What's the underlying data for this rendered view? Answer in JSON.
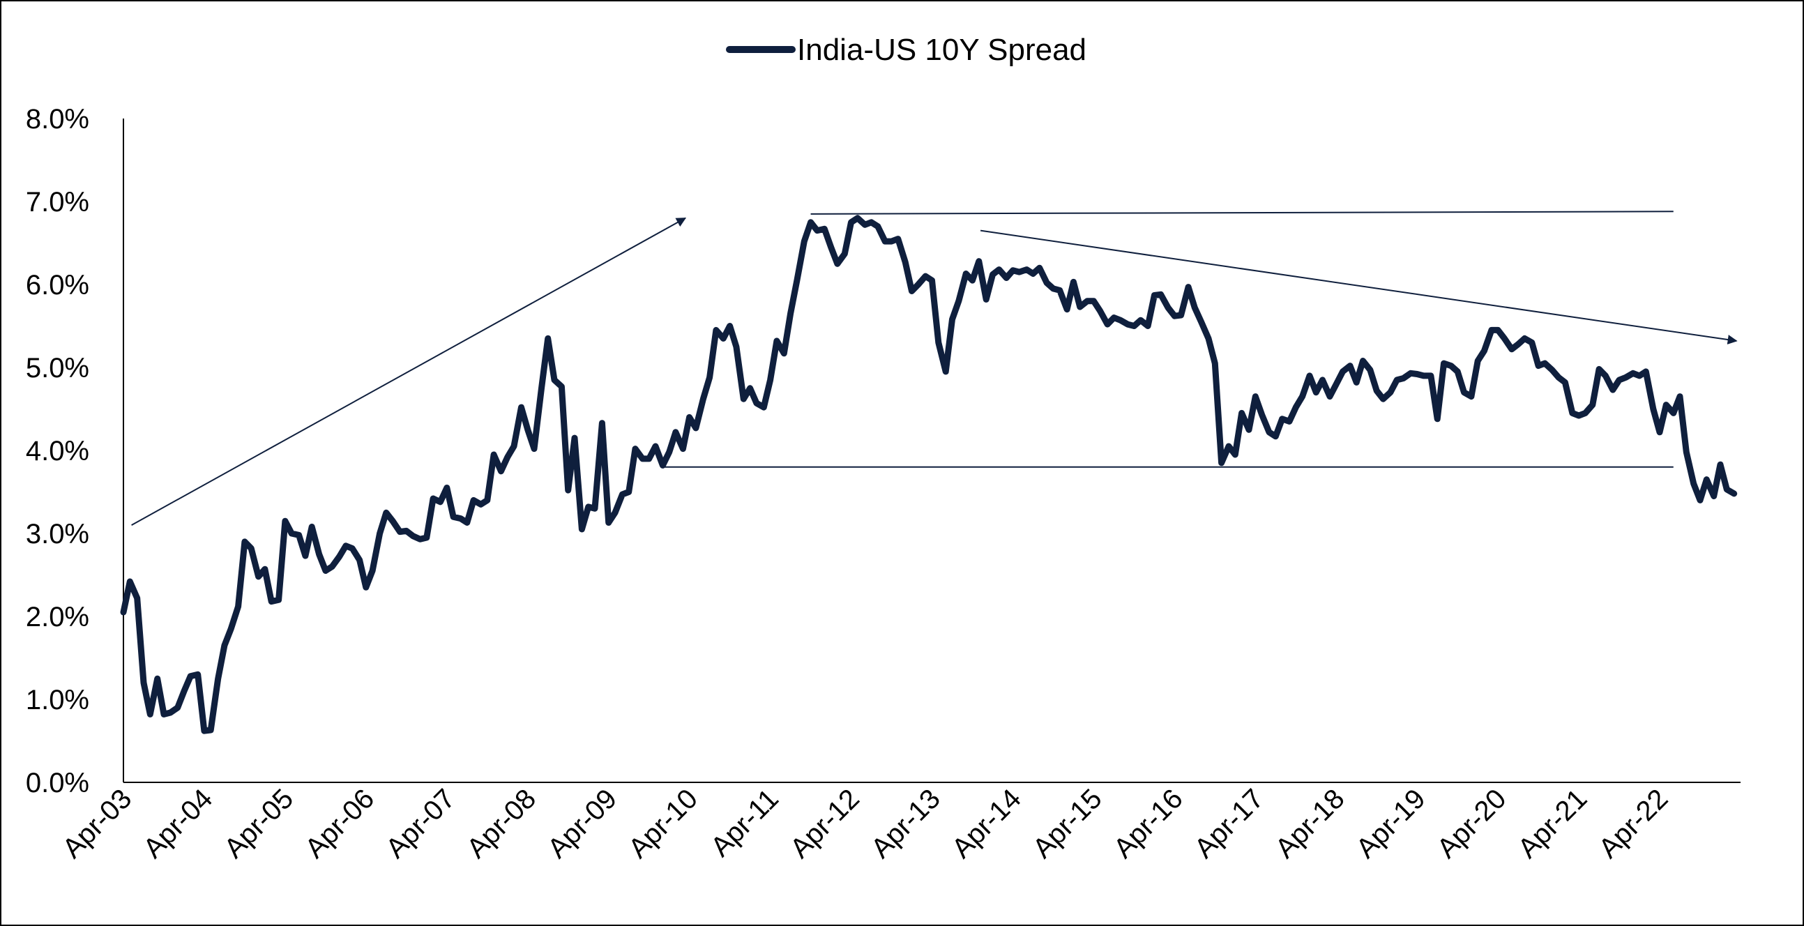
{
  "chart_data": {
    "type": "line",
    "legend": {
      "placement": "top-center",
      "label": "India-US 10Y Spread"
    },
    "y_axis": {
      "min": 0,
      "max": 8,
      "ticks": [
        "0.0%",
        "1.0%",
        "2.0%",
        "3.0%",
        "4.0%",
        "5.0%",
        "6.0%",
        "7.0%",
        "8.0%"
      ]
    },
    "x_axis": {
      "ticks": [
        "Apr-03",
        "Apr-04",
        "Apr-05",
        "Apr-06",
        "Apr-07",
        "Apr-08",
        "Apr-09",
        "Apr-10",
        "Apr-11",
        "Apr-12",
        "Apr-13",
        "Apr-14",
        "Apr-15",
        "Apr-16",
        "Apr-17",
        "Apr-18",
        "Apr-19",
        "Apr-20",
        "Apr-21",
        "Apr-22"
      ],
      "start": 2003.25,
      "end": 2023.25
    },
    "grid": false,
    "colors": {
      "series": "#0f1f3d",
      "annotation": "#0f1f3d"
    },
    "series": [
      {
        "name": "India-US 10Y Spread",
        "points": [
          [
            2003.25,
            2.05
          ],
          [
            2003.33,
            2.42
          ],
          [
            2003.42,
            2.22
          ],
          [
            2003.5,
            1.2
          ],
          [
            2003.58,
            0.82
          ],
          [
            2003.67,
            1.25
          ],
          [
            2003.75,
            0.82
          ],
          [
            2003.83,
            0.84
          ],
          [
            2003.92,
            0.9
          ],
          [
            2004.0,
            1.1
          ],
          [
            2004.08,
            1.28
          ],
          [
            2004.17,
            1.3
          ],
          [
            2004.25,
            0.62
          ],
          [
            2004.33,
            0.63
          ],
          [
            2004.42,
            1.25
          ],
          [
            2004.5,
            1.65
          ],
          [
            2004.58,
            1.85
          ],
          [
            2004.67,
            2.12
          ],
          [
            2004.75,
            2.9
          ],
          [
            2004.83,
            2.82
          ],
          [
            2004.92,
            2.48
          ],
          [
            2005.0,
            2.57
          ],
          [
            2005.08,
            2.18
          ],
          [
            2005.17,
            2.2
          ],
          [
            2005.25,
            3.15
          ],
          [
            2005.33,
            3.0
          ],
          [
            2005.42,
            2.98
          ],
          [
            2005.5,
            2.73
          ],
          [
            2005.58,
            3.08
          ],
          [
            2005.67,
            2.75
          ],
          [
            2005.75,
            2.55
          ],
          [
            2005.83,
            2.6
          ],
          [
            2005.92,
            2.72
          ],
          [
            2006.0,
            2.85
          ],
          [
            2006.08,
            2.82
          ],
          [
            2006.17,
            2.68
          ],
          [
            2006.25,
            2.35
          ],
          [
            2006.33,
            2.55
          ],
          [
            2006.42,
            3.0
          ],
          [
            2006.5,
            3.25
          ],
          [
            2006.58,
            3.15
          ],
          [
            2006.67,
            3.02
          ],
          [
            2006.75,
            3.03
          ],
          [
            2006.83,
            2.97
          ],
          [
            2006.92,
            2.93
          ],
          [
            2007.0,
            2.95
          ],
          [
            2007.08,
            3.42
          ],
          [
            2007.17,
            3.38
          ],
          [
            2007.25,
            3.55
          ],
          [
            2007.33,
            3.2
          ],
          [
            2007.42,
            3.18
          ],
          [
            2007.5,
            3.13
          ],
          [
            2007.58,
            3.4
          ],
          [
            2007.67,
            3.35
          ],
          [
            2007.75,
            3.4
          ],
          [
            2007.83,
            3.95
          ],
          [
            2007.92,
            3.75
          ],
          [
            2008.0,
            3.92
          ],
          [
            2008.08,
            4.05
          ],
          [
            2008.17,
            4.52
          ],
          [
            2008.25,
            4.25
          ],
          [
            2008.33,
            4.02
          ],
          [
            2008.42,
            4.75
          ],
          [
            2008.5,
            5.35
          ],
          [
            2008.58,
            4.85
          ],
          [
            2008.67,
            4.77
          ],
          [
            2008.75,
            3.52
          ],
          [
            2008.83,
            4.15
          ],
          [
            2008.92,
            3.05
          ],
          [
            2009.0,
            3.32
          ],
          [
            2009.08,
            3.3
          ],
          [
            2009.17,
            4.33
          ],
          [
            2009.25,
            3.13
          ],
          [
            2009.33,
            3.25
          ],
          [
            2009.42,
            3.47
          ],
          [
            2009.5,
            3.5
          ],
          [
            2009.58,
            4.02
          ],
          [
            2009.67,
            3.9
          ],
          [
            2009.75,
            3.9
          ],
          [
            2009.83,
            4.05
          ],
          [
            2009.92,
            3.82
          ],
          [
            2010.0,
            3.98
          ],
          [
            2010.08,
            4.22
          ],
          [
            2010.17,
            4.02
          ],
          [
            2010.25,
            4.4
          ],
          [
            2010.33,
            4.27
          ],
          [
            2010.42,
            4.62
          ],
          [
            2010.5,
            4.88
          ],
          [
            2010.58,
            5.45
          ],
          [
            2010.67,
            5.35
          ],
          [
            2010.75,
            5.5
          ],
          [
            2010.83,
            5.25
          ],
          [
            2010.92,
            4.62
          ],
          [
            2011.0,
            4.75
          ],
          [
            2011.08,
            4.57
          ],
          [
            2011.17,
            4.52
          ],
          [
            2011.25,
            4.85
          ],
          [
            2011.33,
            5.32
          ],
          [
            2011.42,
            5.17
          ],
          [
            2011.5,
            5.65
          ],
          [
            2011.58,
            6.05
          ],
          [
            2011.67,
            6.52
          ],
          [
            2011.75,
            6.75
          ],
          [
            2011.83,
            6.65
          ],
          [
            2011.92,
            6.67
          ],
          [
            2012.0,
            6.45
          ],
          [
            2012.08,
            6.25
          ],
          [
            2012.17,
            6.37
          ],
          [
            2012.25,
            6.75
          ],
          [
            2012.33,
            6.8
          ],
          [
            2012.42,
            6.72
          ],
          [
            2012.5,
            6.75
          ],
          [
            2012.58,
            6.7
          ],
          [
            2012.67,
            6.52
          ],
          [
            2012.75,
            6.52
          ],
          [
            2012.83,
            6.55
          ],
          [
            2012.92,
            6.27
          ],
          [
            2013.0,
            5.92
          ],
          [
            2013.08,
            6.0
          ],
          [
            2013.17,
            6.1
          ],
          [
            2013.25,
            6.05
          ],
          [
            2013.33,
            5.3
          ],
          [
            2013.42,
            4.95
          ],
          [
            2013.5,
            5.58
          ],
          [
            2013.58,
            5.8
          ],
          [
            2013.67,
            6.13
          ],
          [
            2013.75,
            6.05
          ],
          [
            2013.83,
            6.28
          ],
          [
            2013.92,
            5.82
          ],
          [
            2014.0,
            6.12
          ],
          [
            2014.08,
            6.18
          ],
          [
            2014.17,
            6.08
          ],
          [
            2014.25,
            6.17
          ],
          [
            2014.33,
            6.15
          ],
          [
            2014.42,
            6.18
          ],
          [
            2014.5,
            6.13
          ],
          [
            2014.58,
            6.2
          ],
          [
            2014.67,
            6.02
          ],
          [
            2014.75,
            5.95
          ],
          [
            2014.83,
            5.93
          ],
          [
            2014.92,
            5.7
          ],
          [
            2015.0,
            6.03
          ],
          [
            2015.08,
            5.73
          ],
          [
            2015.17,
            5.8
          ],
          [
            2015.25,
            5.8
          ],
          [
            2015.33,
            5.68
          ],
          [
            2015.42,
            5.52
          ],
          [
            2015.5,
            5.6
          ],
          [
            2015.58,
            5.57
          ],
          [
            2015.67,
            5.52
          ],
          [
            2015.75,
            5.5
          ],
          [
            2015.83,
            5.57
          ],
          [
            2015.92,
            5.5
          ],
          [
            2016.0,
            5.87
          ],
          [
            2016.08,
            5.88
          ],
          [
            2016.17,
            5.72
          ],
          [
            2016.25,
            5.62
          ],
          [
            2016.33,
            5.63
          ],
          [
            2016.42,
            5.97
          ],
          [
            2016.5,
            5.72
          ],
          [
            2016.58,
            5.55
          ],
          [
            2016.67,
            5.35
          ],
          [
            2016.75,
            5.05
          ],
          [
            2016.83,
            3.85
          ],
          [
            2016.92,
            4.05
          ],
          [
            2017.0,
            3.95
          ],
          [
            2017.08,
            4.45
          ],
          [
            2017.17,
            4.25
          ],
          [
            2017.25,
            4.65
          ],
          [
            2017.33,
            4.43
          ],
          [
            2017.42,
            4.22
          ],
          [
            2017.5,
            4.17
          ],
          [
            2017.58,
            4.38
          ],
          [
            2017.67,
            4.35
          ],
          [
            2017.75,
            4.52
          ],
          [
            2017.83,
            4.65
          ],
          [
            2017.92,
            4.9
          ],
          [
            2018.0,
            4.7
          ],
          [
            2018.08,
            4.85
          ],
          [
            2018.17,
            4.65
          ],
          [
            2018.25,
            4.8
          ],
          [
            2018.33,
            4.95
          ],
          [
            2018.42,
            5.02
          ],
          [
            2018.5,
            4.82
          ],
          [
            2018.58,
            5.08
          ],
          [
            2018.67,
            4.97
          ],
          [
            2018.75,
            4.72
          ],
          [
            2018.83,
            4.62
          ],
          [
            2018.92,
            4.7
          ],
          [
            2019.0,
            4.85
          ],
          [
            2019.08,
            4.87
          ],
          [
            2019.17,
            4.93
          ],
          [
            2019.25,
            4.92
          ],
          [
            2019.33,
            4.9
          ],
          [
            2019.42,
            4.9
          ],
          [
            2019.5,
            4.38
          ],
          [
            2019.58,
            5.05
          ],
          [
            2019.67,
            5.02
          ],
          [
            2019.75,
            4.95
          ],
          [
            2019.83,
            4.7
          ],
          [
            2019.92,
            4.65
          ],
          [
            2020.0,
            5.08
          ],
          [
            2020.08,
            5.2
          ],
          [
            2020.17,
            5.45
          ],
          [
            2020.25,
            5.45
          ],
          [
            2020.33,
            5.35
          ],
          [
            2020.42,
            5.22
          ],
          [
            2020.5,
            5.28
          ],
          [
            2020.58,
            5.35
          ],
          [
            2020.67,
            5.3
          ],
          [
            2020.75,
            5.02
          ],
          [
            2020.83,
            5.05
          ],
          [
            2020.92,
            4.97
          ],
          [
            2021.0,
            4.88
          ],
          [
            2021.08,
            4.82
          ],
          [
            2021.17,
            4.45
          ],
          [
            2021.25,
            4.42
          ],
          [
            2021.33,
            4.45
          ],
          [
            2021.42,
            4.55
          ],
          [
            2021.5,
            4.98
          ],
          [
            2021.58,
            4.9
          ],
          [
            2021.67,
            4.73
          ],
          [
            2021.75,
            4.85
          ],
          [
            2021.83,
            4.88
          ],
          [
            2021.92,
            4.93
          ],
          [
            2022.0,
            4.9
          ],
          [
            2022.08,
            4.95
          ],
          [
            2022.17,
            4.5
          ],
          [
            2022.25,
            4.22
          ],
          [
            2022.33,
            4.55
          ],
          [
            2022.42,
            4.45
          ],
          [
            2022.5,
            4.65
          ],
          [
            2022.58,
            3.98
          ],
          [
            2022.67,
            3.6
          ],
          [
            2022.75,
            3.4
          ],
          [
            2022.83,
            3.65
          ],
          [
            2022.92,
            3.45
          ],
          [
            2023.0,
            3.83
          ],
          [
            2023.08,
            3.53
          ],
          [
            2023.17,
            3.48
          ]
        ]
      }
    ],
    "annotations": [
      {
        "kind": "arrow",
        "from": [
          2003.35,
          3.1
        ],
        "to": [
          2010.2,
          6.8
        ]
      },
      {
        "kind": "line",
        "from": [
          2011.75,
          6.85
        ],
        "to": [
          2022.42,
          6.88
        ]
      },
      {
        "kind": "line",
        "from": [
          2009.9,
          3.8
        ],
        "to": [
          2022.42,
          3.8
        ]
      },
      {
        "kind": "arrow",
        "from": [
          2013.85,
          6.65
        ],
        "to": [
          2023.2,
          5.32
        ]
      }
    ]
  }
}
